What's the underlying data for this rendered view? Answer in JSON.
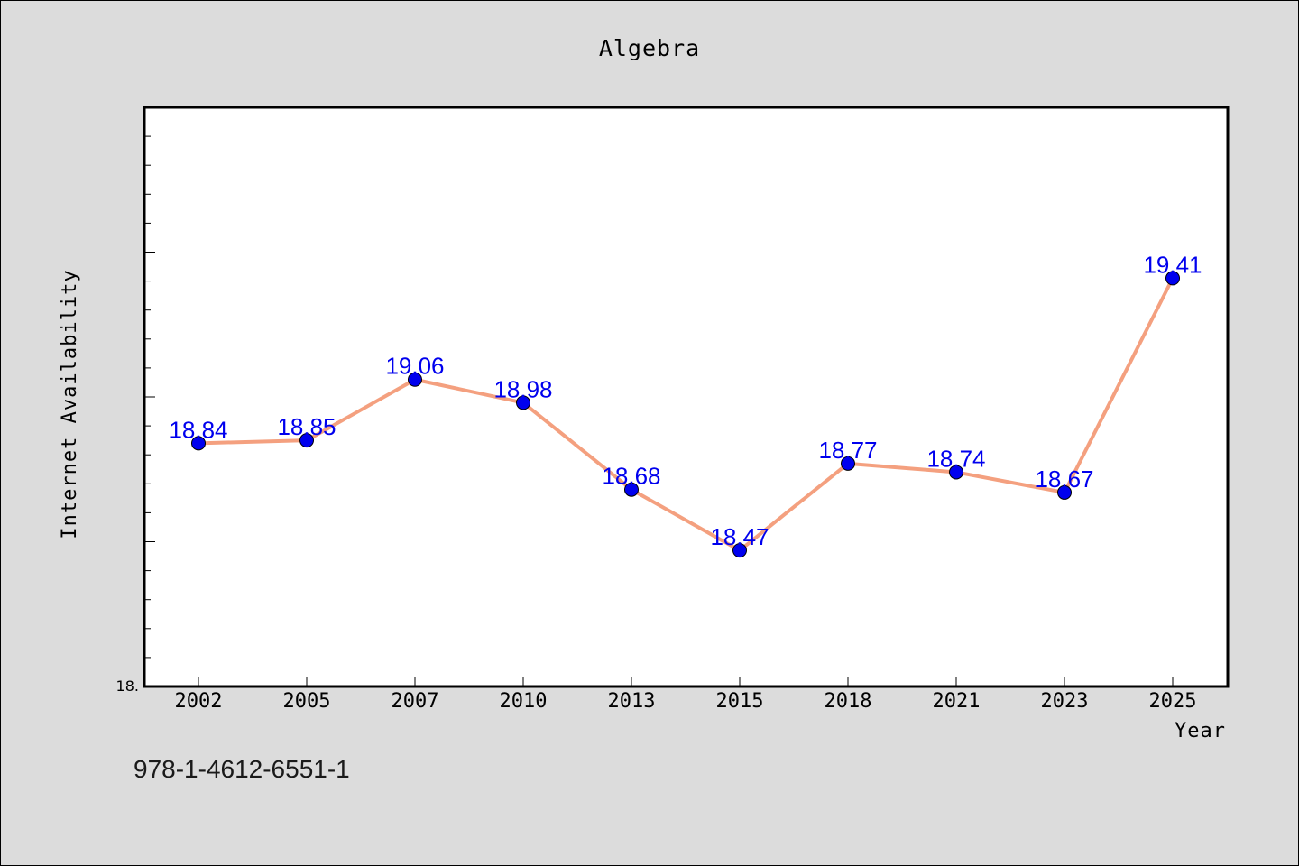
{
  "chart_data": {
    "type": "line",
    "title": "Algebra",
    "xlabel": "Year",
    "ylabel": "Internet Availability",
    "categories": [
      "2002",
      "2005",
      "2007",
      "2010",
      "2013",
      "2015",
      "2018",
      "2021",
      "2023",
      "2025"
    ],
    "series": [
      {
        "values": [
          18.84,
          18.85,
          19.06,
          18.98,
          18.68,
          18.47,
          18.77,
          18.74,
          18.67,
          19.41
        ]
      }
    ],
    "data_labels": [
      "18.84",
      "18.85",
      "19.06",
      "18.98",
      "18.68",
      "18.47",
      "18.77",
      "18.74",
      "18.67",
      "19.41"
    ],
    "y_min_label": "18.",
    "ylim": [
      18.0,
      20.0
    ],
    "grid": false,
    "line_color": "#f4a07f",
    "marker_color": "#0000ee",
    "label_color": "#0000ee",
    "plot_background": "#ffffff",
    "figure_background": "#dcdcdc"
  },
  "footer_text": "978-1-4612-6551-1"
}
